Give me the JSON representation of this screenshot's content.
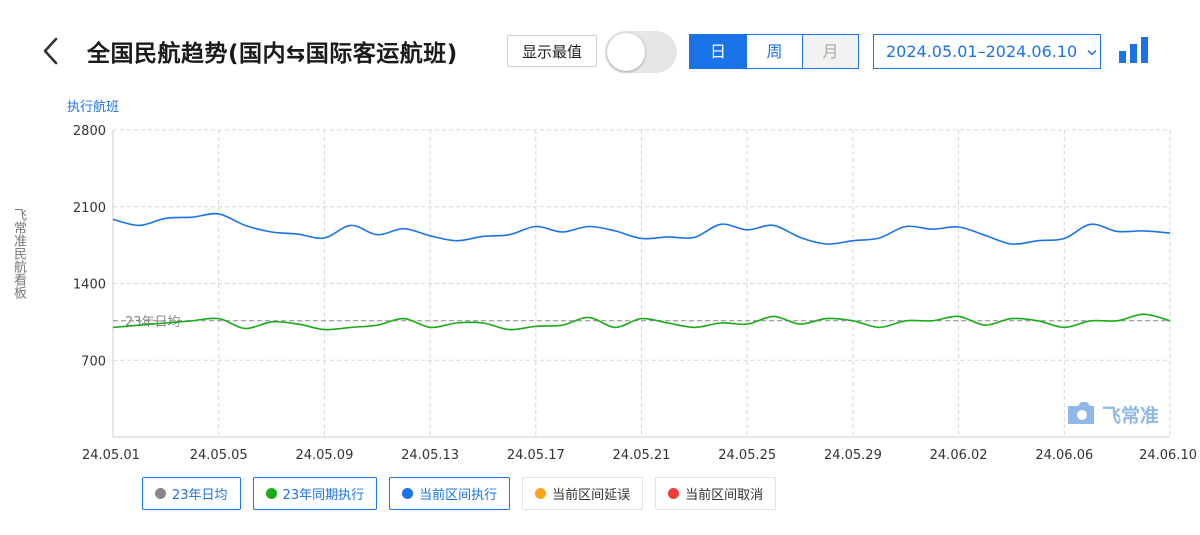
{
  "header": {
    "title": "全国民航趋势(国内⇆国际客运航班)",
    "show_extreme_label": "显示最值",
    "show_extreme_on": false,
    "period_tabs": [
      {
        "label": "日",
        "state": "active"
      },
      {
        "label": "周",
        "state": "normal"
      },
      {
        "label": "月",
        "state": "disabled"
      }
    ],
    "date_range": "2024.05.01–2024.06.10",
    "accent_color": "#1a73e8"
  },
  "side_text": "飞常准民航看板",
  "watermark": "飞常准",
  "chart_data": {
    "type": "line",
    "ylabel": "执行航班",
    "ylim": [
      0,
      2800
    ],
    "yticks": [
      700,
      1400,
      2100,
      2800
    ],
    "grid": true,
    "xlabels": [
      "24.05.01",
      "24.05.05",
      "24.05.09",
      "24.05.13",
      "24.05.17",
      "24.05.21",
      "24.05.25",
      "24.05.29",
      "24.06.02",
      "24.06.06",
      "24.06.10"
    ],
    "reference_line": {
      "value": 1060,
      "label": "23年日均"
    },
    "series": [
      {
        "name": "当前区间执行",
        "color": "#1a73e8",
        "values": [
          1985,
          1930,
          1995,
          2005,
          2035,
          1930,
          1870,
          1850,
          1815,
          1930,
          1845,
          1900,
          1835,
          1790,
          1830,
          1845,
          1920,
          1870,
          1920,
          1880,
          1810,
          1825,
          1820,
          1940,
          1890,
          1930,
          1820,
          1760,
          1790,
          1815,
          1920,
          1895,
          1915,
          1840,
          1760,
          1790,
          1810,
          1940,
          1875,
          1880,
          1860
        ]
      },
      {
        "name": "23年同期执行",
        "color": "#1aab1a",
        "values": [
          1000,
          1020,
          1040,
          1060,
          1080,
          990,
          1050,
          1030,
          980,
          1000,
          1020,
          1080,
          1000,
          1040,
          1040,
          980,
          1010,
          1020,
          1090,
          1000,
          1080,
          1040,
          1000,
          1040,
          1030,
          1100,
          1030,
          1080,
          1060,
          1000,
          1060,
          1060,
          1100,
          1020,
          1080,
          1060,
          1000,
          1060,
          1060,
          1120,
          1060
        ]
      }
    ],
    "legend": [
      {
        "label": "23年日均",
        "color": "#888888",
        "active": true
      },
      {
        "label": "23年同期执行",
        "color": "#1aab1a",
        "active": true
      },
      {
        "label": "当前区间执行",
        "color": "#1a73e8",
        "active": true
      },
      {
        "label": "当前区间延误",
        "color": "#ffa31a",
        "active": false
      },
      {
        "label": "当前区间取消",
        "color": "#ee3b3b",
        "active": false
      }
    ]
  }
}
